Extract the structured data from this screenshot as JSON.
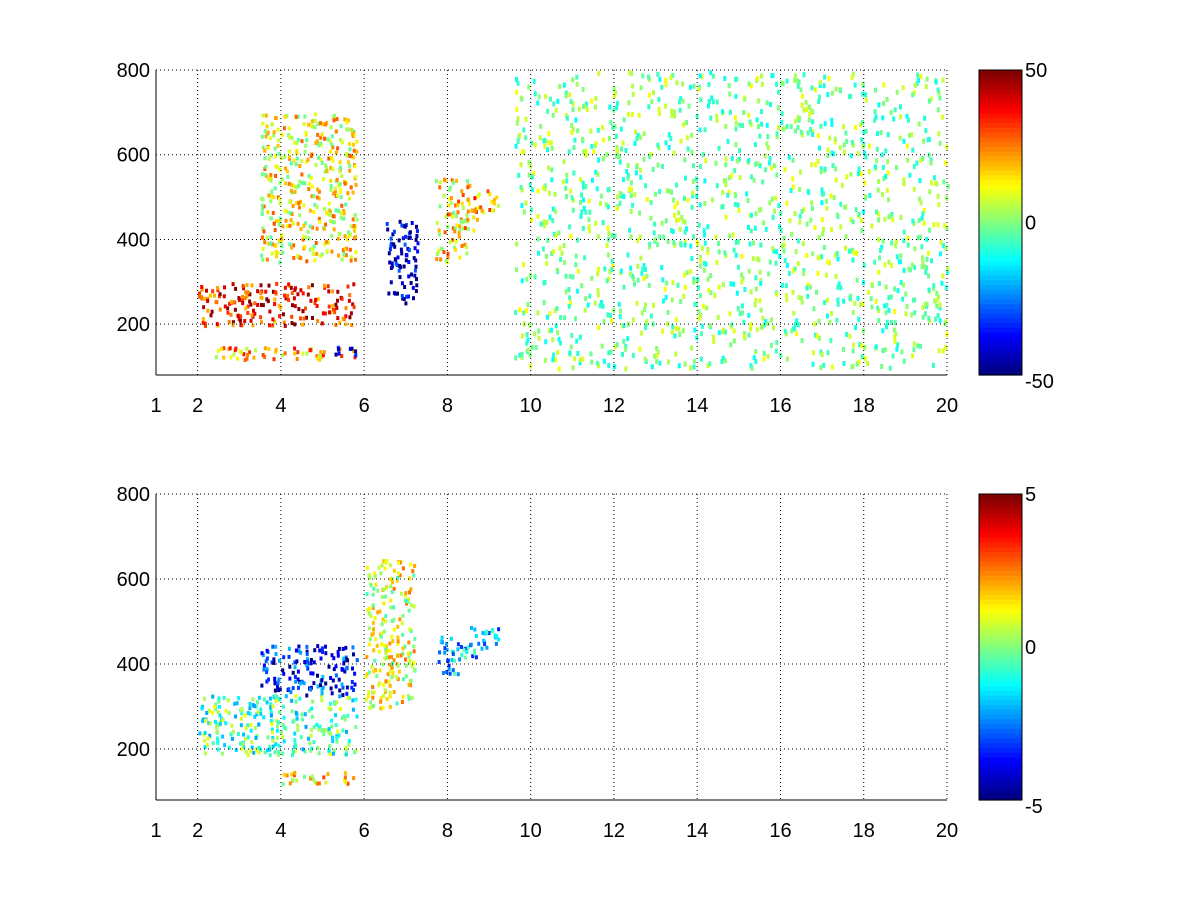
{
  "chart_data": [
    {
      "type": "heatmap",
      "xlim": [
        1,
        20
      ],
      "ylim": [
        80,
        800
      ],
      "xticks": [
        "1",
        "2",
        "4",
        "6",
        "8",
        "10",
        "12",
        "14",
        "16",
        "18",
        "20"
      ],
      "yticks": [
        "200",
        "400",
        "600",
        "800"
      ],
      "grid": true,
      "colorbar": {
        "min": -50,
        "max": 50,
        "ticks": [
          "50",
          "0",
          "-50"
        ]
      },
      "colormap": "jet",
      "features": [
        {
          "x": [
            2.0,
            5.8
          ],
          "y": [
            200,
            300
          ],
          "value": 35
        },
        {
          "x": [
            2.3,
            5.8
          ],
          "y": [
            120,
            150
          ],
          "value": 20
        },
        {
          "x": [
            3.5,
            5.8
          ],
          "y": [
            350,
            700
          ],
          "value": 12
        },
        {
          "x": [
            5.0,
            5.8
          ],
          "y": [
            130,
            150
          ],
          "value": -40
        },
        {
          "x": [
            6.5,
            7.3
          ],
          "y": [
            250,
            450
          ],
          "value": -45
        },
        {
          "x": [
            7.7,
            8.6
          ],
          "y": [
            350,
            550
          ],
          "value": 15
        },
        {
          "x": [
            8.6,
            9.2
          ],
          "y": [
            450,
            520
          ],
          "value": 20
        },
        {
          "x": [
            9.6,
            20.0
          ],
          "y": [
            100,
            800
          ],
          "value": 0
        }
      ]
    },
    {
      "type": "heatmap",
      "xlim": [
        1,
        20
      ],
      "ylim": [
        80,
        800
      ],
      "xticks": [
        "1",
        "2",
        "4",
        "6",
        "8",
        "10",
        "12",
        "14",
        "16",
        "18",
        "20"
      ],
      "yticks": [
        "200",
        "400",
        "600",
        "800"
      ],
      "grid": true,
      "colorbar": {
        "min": -5,
        "max": 5,
        "ticks": [
          "5",
          "0",
          "-5"
        ]
      },
      "colormap": "jet",
      "features": [
        {
          "x": [
            2.0,
            5.8
          ],
          "y": [
            190,
            330
          ],
          "value": -0.5
        },
        {
          "x": [
            4.0,
            5.8
          ],
          "y": [
            120,
            150
          ],
          "value": 1.5
        },
        {
          "x": [
            3.5,
            5.8
          ],
          "y": [
            330,
            450
          ],
          "value": -3.5
        },
        {
          "x": [
            6.0,
            7.2
          ],
          "y": [
            300,
            650
          ],
          "value": 1.0
        },
        {
          "x": [
            7.7,
            8.5
          ],
          "y": [
            380,
            470
          ],
          "value": -2.0
        },
        {
          "x": [
            8.5,
            9.2
          ],
          "y": [
            420,
            500
          ],
          "value": -2.0
        }
      ]
    }
  ]
}
